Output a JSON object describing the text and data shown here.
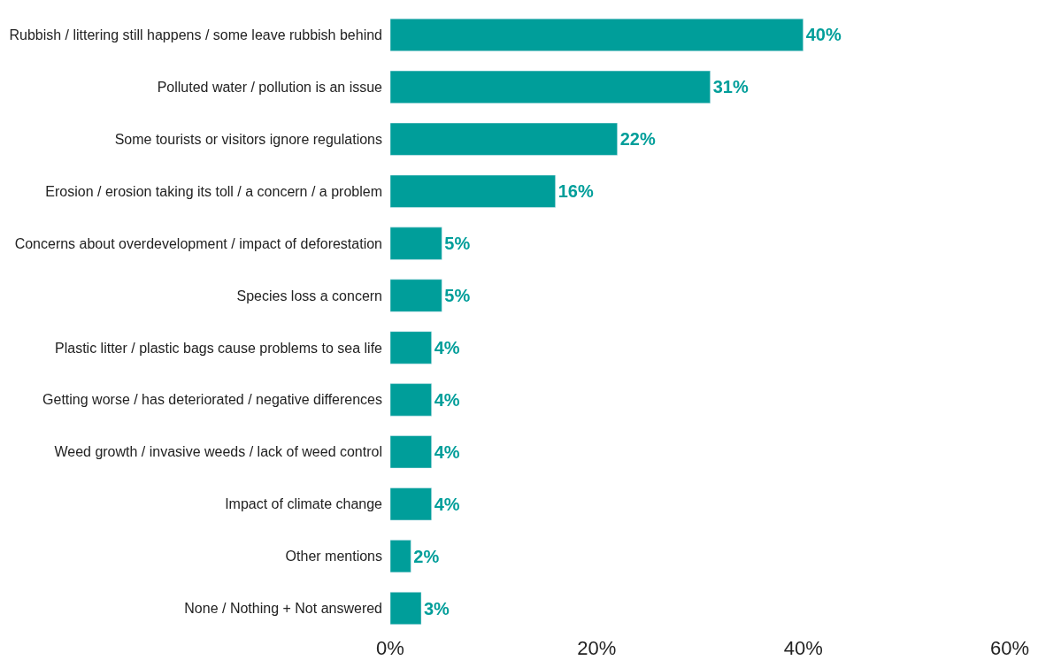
{
  "chart_data": {
    "type": "bar",
    "orientation": "horizontal",
    "categories": [
      "Rubbish / littering still happens / some leave rubbish behind",
      "Polluted water / pollution is an issue",
      "Some tourists or visitors ignore regulations",
      "Erosion / erosion taking its toll / a concern / a problem",
      "Concerns about overdevelopment / impact of deforestation",
      "Species loss a concern",
      "Plastic litter / plastic bags cause problems to sea life",
      "Getting worse / has deteriorated / negative differences",
      "Weed growth / invasive weeds / lack of weed control",
      "Impact of climate change",
      "Other mentions",
      "None / Nothing + Not answered"
    ],
    "values": [
      40,
      31,
      22,
      16,
      5,
      5,
      4,
      4,
      4,
      4,
      2,
      3
    ],
    "value_labels": [
      "40%",
      "31%",
      "22%",
      "16%",
      "5%",
      "5%",
      "4%",
      "4%",
      "4%",
      "4%",
      "2%",
      "3%"
    ],
    "color": "#009e9a",
    "xlim": [
      0,
      60
    ],
    "xticks": [
      {
        "value": 0,
        "label": "0%"
      },
      {
        "value": 20,
        "label": "20%"
      },
      {
        "value": 40,
        "label": "40%"
      },
      {
        "value": 60,
        "label": "60%"
      }
    ],
    "legend": false
  }
}
